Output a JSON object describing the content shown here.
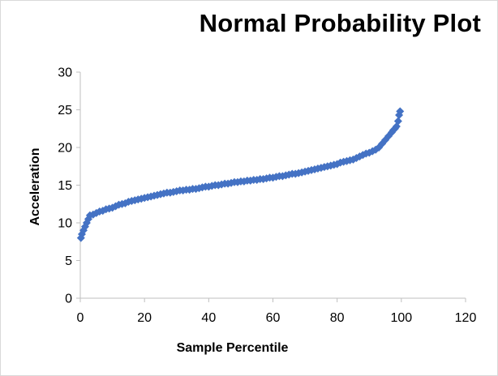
{
  "chart_data": {
    "type": "scatter",
    "title": "Normal Probability Plot",
    "xlabel": "Sample Percentile",
    "ylabel": "Acceleration",
    "xlim": [
      0,
      120
    ],
    "ylim": [
      0,
      30
    ],
    "xticks": [
      0,
      20,
      40,
      60,
      80,
      100,
      120
    ],
    "yticks": [
      0,
      5,
      10,
      15,
      20,
      25,
      30
    ],
    "grid": false,
    "legend": "none",
    "marker": "diamond",
    "color": "#4472C4",
    "series": [
      {
        "x": [
          0.2,
          0.5,
          1.0,
          1.5,
          2.0,
          2.5,
          3.0,
          4.0,
          5.0,
          6.0,
          7.0,
          8.0,
          9.0,
          10.0,
          11.0,
          12.0,
          13.0,
          14.0,
          15.0,
          16.0,
          17.0,
          18.0,
          19.0,
          20.0,
          21.0,
          22.0,
          23.0,
          24.0,
          25.0,
          26.0,
          27.0,
          28.0,
          29.0,
          30.0,
          31.0,
          32.0,
          33.0,
          34.0,
          35.0,
          36.0,
          37.0,
          38.0,
          39.0,
          40.0,
          41.0,
          42.0,
          43.0,
          44.0,
          45.0,
          46.0,
          47.0,
          48.0,
          49.0,
          50.0,
          51.0,
          52.0,
          53.0,
          54.0,
          55.0,
          56.0,
          57.0,
          58.0,
          59.0,
          60.0,
          61.0,
          62.0,
          63.0,
          64.0,
          65.0,
          66.0,
          67.0,
          68.0,
          69.0,
          70.0,
          71.0,
          72.0,
          73.0,
          74.0,
          75.0,
          76.0,
          77.0,
          78.0,
          79.0,
          80.0,
          81.0,
          82.0,
          83.0,
          84.0,
          85.0,
          86.0,
          87.0,
          88.0,
          89.0,
          90.0,
          91.0,
          92.0,
          93.0,
          94.0,
          95.0,
          96.0,
          97.0,
          97.5,
          98.0,
          98.5,
          99.0,
          99.3,
          99.6
        ],
        "y": [
          8.0,
          8.5,
          9.0,
          9.5,
          10.0,
          10.5,
          11.0,
          11.1,
          11.3,
          11.5,
          11.6,
          11.8,
          11.9,
          12.0,
          12.2,
          12.4,
          12.5,
          12.6,
          12.8,
          12.9,
          13.0,
          13.1,
          13.2,
          13.3,
          13.4,
          13.5,
          13.6,
          13.7,
          13.8,
          13.9,
          14.0,
          14.0,
          14.1,
          14.2,
          14.3,
          14.3,
          14.4,
          14.4,
          14.5,
          14.5,
          14.6,
          14.7,
          14.8,
          14.8,
          14.9,
          15.0,
          15.0,
          15.1,
          15.2,
          15.2,
          15.3,
          15.4,
          15.4,
          15.5,
          15.5,
          15.6,
          15.6,
          15.7,
          15.7,
          15.8,
          15.8,
          15.9,
          16.0,
          16.0,
          16.1,
          16.2,
          16.2,
          16.3,
          16.4,
          16.5,
          16.5,
          16.6,
          16.7,
          16.8,
          16.9,
          17.0,
          17.1,
          17.2,
          17.3,
          17.4,
          17.5,
          17.6,
          17.7,
          17.8,
          18.0,
          18.1,
          18.2,
          18.3,
          18.4,
          18.6,
          18.8,
          19.0,
          19.2,
          19.3,
          19.5,
          19.7,
          20.0,
          20.5,
          21.0,
          21.5,
          22.0,
          22.3,
          22.5,
          22.8,
          23.5,
          24.3,
          24.8
        ]
      }
    ]
  }
}
